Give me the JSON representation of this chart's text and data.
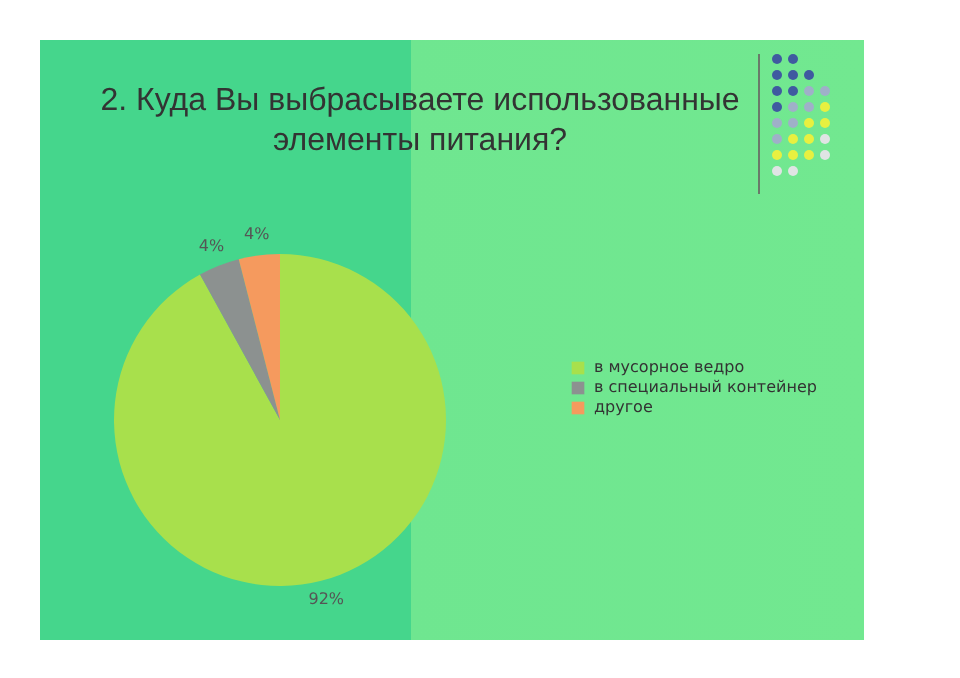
{
  "chart_data": {
    "type": "pie",
    "title": "2. Куда Вы выбрасываете использованные элементы питания?",
    "categories": [
      "в мусорное ведро",
      "в специальный контейнер",
      "другое"
    ],
    "values": [
      92,
      4,
      4
    ],
    "value_labels": [
      "92%",
      "4%",
      "4%"
    ],
    "colors": [
      "#a8e04c",
      "#8c9190",
      "#f59a5e"
    ],
    "legend": "right"
  }
}
